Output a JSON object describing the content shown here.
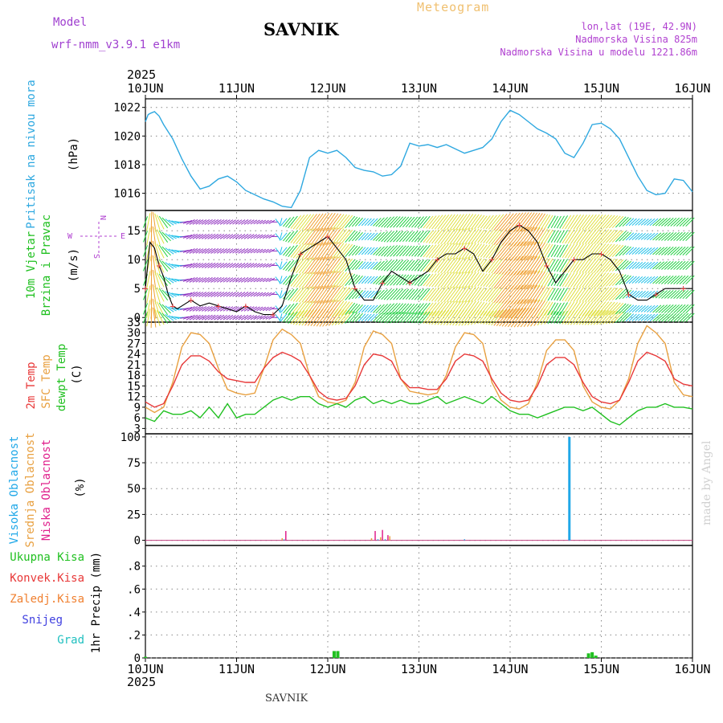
{
  "header": {
    "model_label": "Model",
    "model_name": "wrf-nmm_v3.9.1 e1km",
    "station": "SAVNIK",
    "meteogram_label": "Meteogram",
    "location_lonlat": "lon,lat (19E, 42.9N)",
    "altitude": "Nadmorska Visina 825m",
    "model_altitude": "Nadmorska Visina u modelu 1221.86m",
    "year": "2025"
  },
  "footer": {
    "station": "SAVNIK",
    "credit": "made by Angel"
  },
  "colors": {
    "pressure": "#2ea8e0",
    "temp2m": "#e83838",
    "sfc_temp": "#e8a040",
    "dewpt": "#20c020",
    "high_cloud": "#20a8e8",
    "mid_cloud": "#e8a040",
    "low_cloud": "#e0208c",
    "total_precip": "#20c020",
    "conv_precip": "#e83838",
    "grid_precip": "#f08030",
    "snow": "#4040e0",
    "graupel": "#20c0c0"
  },
  "chart_data": [
    {
      "type": "line",
      "name": "pressure",
      "ylabel_lines": [
        "Pritisak na nivou mora",
        "(hPa)"
      ],
      "x_days": [
        "10JUN",
        "11JUN",
        "12JUN",
        "13JUN",
        "14JUN",
        "15JUN",
        "16JUN"
      ],
      "ylim": [
        1014.8,
        1022.6
      ],
      "yticks": [
        1016,
        1018,
        1020,
        1022
      ],
      "grid": true,
      "series": [
        {
          "x": [
            0,
            0.03,
            0.06,
            0.1,
            0.15,
            0.2,
            0.3,
            0.4,
            0.5,
            0.6,
            0.7,
            0.8,
            0.9,
            1.0,
            1.1,
            1.2,
            1.3,
            1.4,
            1.5,
            1.6,
            1.7,
            1.8,
            1.9,
            2.0,
            2.1,
            2.2,
            2.3,
            2.4,
            2.5,
            2.6,
            2.7,
            2.8,
            2.9,
            3.0,
            3.1,
            3.2,
            3.3,
            3.4,
            3.5,
            3.6,
            3.7,
            3.8,
            3.9,
            4.0,
            4.1,
            4.2,
            4.3,
            4.4,
            4.5,
            4.6,
            4.7,
            4.8,
            4.9,
            5.0,
            5.1,
            5.2,
            5.3,
            5.4,
            5.5,
            5.6,
            5.7,
            5.8,
            5.9,
            6.0
          ],
          "values": [
            1021.0,
            1021.5,
            1021.6,
            1021.7,
            1021.4,
            1020.8,
            1019.8,
            1018.4,
            1017.2,
            1016.3,
            1016.5,
            1017.0,
            1017.2,
            1016.8,
            1016.2,
            1015.9,
            1015.6,
            1015.4,
            1015.1,
            1015.0,
            1016.2,
            1018.5,
            1019.0,
            1018.8,
            1019.0,
            1018.5,
            1017.8,
            1017.6,
            1017.5,
            1017.2,
            1017.3,
            1017.9,
            1019.5,
            1019.3,
            1019.4,
            1019.2,
            1019.4,
            1019.1,
            1018.8,
            1019.0,
            1019.2,
            1019.8,
            1021.0,
            1021.8,
            1021.5,
            1021.0,
            1020.5,
            1020.2,
            1019.8,
            1018.8,
            1018.5,
            1019.5,
            1020.8,
            1020.9,
            1020.5,
            1019.8,
            1018.5,
            1017.2,
            1016.2,
            1015.9,
            1016.0,
            1017.0,
            1016.9,
            1016.1
          ]
        }
      ]
    },
    {
      "type": "line",
      "name": "wind",
      "ylabel_lines": [
        "10m Vjetar",
        "Brzina i Pravac",
        "(m/s)"
      ],
      "compass_labels": [
        "N",
        "W",
        "E",
        "S"
      ],
      "x_days": [
        "10JUN",
        "11JUN",
        "12JUN",
        "13JUN",
        "14JUN",
        "15JUN",
        "16JUN"
      ],
      "ylim": [
        -0.8,
        18.5
      ],
      "yticks": [
        0,
        5,
        10,
        15
      ],
      "grid": true,
      "series": [
        {
          "name": "speed",
          "x": [
            0,
            0.05,
            0.1,
            0.15,
            0.2,
            0.25,
            0.3,
            0.35,
            0.4,
            0.5,
            0.6,
            0.7,
            0.8,
            0.9,
            1.0,
            1.1,
            1.2,
            1.3,
            1.4,
            1.5,
            1.6,
            1.7,
            1.8,
            1.9,
            2.0,
            2.1,
            2.2,
            2.3,
            2.4,
            2.5,
            2.6,
            2.7,
            2.8,
            2.9,
            3.0,
            3.1,
            3.2,
            3.3,
            3.4,
            3.5,
            3.6,
            3.7,
            3.8,
            3.9,
            4.0,
            4.1,
            4.2,
            4.3,
            4.4,
            4.5,
            4.6,
            4.7,
            4.8,
            4.9,
            5.0,
            5.1,
            5.2,
            5.3,
            5.4,
            5.5,
            5.6,
            5.7,
            5.8,
            5.9,
            6.0
          ],
          "values": [
            5,
            13,
            12,
            9,
            7,
            4,
            2,
            1.5,
            2,
            3,
            2,
            2.5,
            2,
            1.5,
            1,
            2,
            1,
            0.5,
            0.5,
            2,
            7,
            11,
            12,
            13,
            14,
            12,
            10,
            5,
            3,
            3,
            6,
            8,
            7,
            6,
            7,
            8,
            10,
            11,
            11,
            12,
            11,
            8,
            10,
            13,
            15,
            16,
            15,
            13,
            9,
            6,
            8,
            10,
            10,
            11,
            11,
            10,
            8,
            4,
            3,
            3,
            4,
            5,
            5,
            5,
            5
          ]
        },
        {
          "name": "direction_deg",
          "x": [
            0,
            0.5,
            1.0,
            1.4,
            1.5,
            2.0,
            2.5,
            3.0,
            3.5,
            4.0,
            4.5,
            5.0,
            5.5,
            6.0
          ],
          "values": [
            200,
            60,
            55,
            60,
            220,
            215,
            225,
            220,
            215,
            220,
            210,
            220,
            230,
            225
          ]
        }
      ]
    },
    {
      "type": "line",
      "name": "temperature",
      "legend": [
        "2m Temp",
        "SFC Temp",
        "dewpt Temp"
      ],
      "ylabel_lines": [
        "(C)"
      ],
      "x_days": [
        "10JUN",
        "11JUN",
        "12JUN",
        "13JUN",
        "14JUN",
        "15JUN",
        "16JUN"
      ],
      "ylim": [
        1.5,
        33
      ],
      "yticks": [
        3,
        6,
        9,
        12,
        15,
        18,
        21,
        24,
        27,
        30,
        33
      ],
      "grid": true,
      "series": [
        {
          "name": "2m Temp",
          "x": [
            0,
            0.1,
            0.2,
            0.3,
            0.4,
            0.5,
            0.6,
            0.7,
            0.8,
            0.9,
            1.0,
            1.1,
            1.2,
            1.3,
            1.4,
            1.5,
            1.6,
            1.7,
            1.8,
            1.9,
            2.0,
            2.1,
            2.2,
            2.3,
            2.4,
            2.5,
            2.6,
            2.7,
            2.8,
            2.9,
            3.0,
            3.1,
            3.2,
            3.3,
            3.4,
            3.5,
            3.6,
            3.7,
            3.8,
            3.9,
            4.0,
            4.1,
            4.2,
            4.3,
            4.4,
            4.5,
            4.6,
            4.7,
            4.8,
            4.9,
            5.0,
            5.1,
            5.2,
            5.3,
            5.4,
            5.5,
            5.6,
            5.7,
            5.8,
            5.9,
            6.0
          ],
          "values": [
            10.5,
            9,
            10,
            15,
            21,
            23.5,
            23.5,
            22,
            19,
            17,
            16.5,
            16,
            16,
            20,
            23,
            24.5,
            23.5,
            22,
            18,
            13.5,
            11.5,
            11,
            11.5,
            15,
            21,
            24,
            23.5,
            22,
            17,
            14.5,
            14.5,
            14,
            14,
            17,
            22,
            24,
            23.5,
            22,
            17,
            13,
            11,
            10.5,
            11,
            15,
            21,
            23,
            23,
            21,
            16,
            12,
            10.5,
            10,
            11,
            16,
            22,
            24.5,
            23.5,
            22,
            17,
            15.5,
            15
          ]
        },
        {
          "name": "SFC Temp",
          "x": [
            0,
            0.1,
            0.2,
            0.3,
            0.4,
            0.5,
            0.6,
            0.7,
            0.8,
            0.9,
            1.0,
            1.1,
            1.2,
            1.3,
            1.4,
            1.5,
            1.6,
            1.7,
            1.8,
            1.9,
            2.0,
            2.1,
            2.2,
            2.3,
            2.4,
            2.5,
            2.6,
            2.7,
            2.8,
            2.9,
            3.0,
            3.1,
            3.2,
            3.3,
            3.4,
            3.5,
            3.6,
            3.7,
            3.8,
            3.9,
            4.0,
            4.1,
            4.2,
            4.3,
            4.4,
            4.5,
            4.6,
            4.7,
            4.8,
            4.9,
            5.0,
            5.1,
            5.2,
            5.3,
            5.4,
            5.5,
            5.6,
            5.7,
            5.8,
            5.9,
            6.0
          ],
          "values": [
            9,
            7.5,
            9,
            16,
            26,
            30,
            29.5,
            27,
            20,
            14,
            13,
            12.5,
            13,
            20,
            28,
            31,
            29.5,
            27,
            18,
            12,
            10.5,
            10,
            11,
            16,
            26,
            30.5,
            29.5,
            27,
            17,
            13.5,
            13,
            12.5,
            13,
            18,
            26,
            30,
            29.5,
            27,
            16,
            11,
            9,
            8.5,
            10,
            16,
            25,
            28,
            28,
            25,
            15,
            10.5,
            9,
            8.5,
            11,
            17,
            27,
            32,
            30,
            27,
            16,
            12.5,
            12
          ]
        },
        {
          "name": "dewpt Temp",
          "x": [
            0,
            0.1,
            0.2,
            0.3,
            0.4,
            0.5,
            0.6,
            0.7,
            0.8,
            0.9,
            1.0,
            1.1,
            1.2,
            1.3,
            1.4,
            1.5,
            1.6,
            1.7,
            1.8,
            1.9,
            2.0,
            2.1,
            2.2,
            2.3,
            2.4,
            2.5,
            2.6,
            2.7,
            2.8,
            2.9,
            3.0,
            3.1,
            3.2,
            3.3,
            3.4,
            3.5,
            3.6,
            3.7,
            3.8,
            3.9,
            4.0,
            4.1,
            4.2,
            4.3,
            4.4,
            4.5,
            4.6,
            4.7,
            4.8,
            4.9,
            5.0,
            5.1,
            5.2,
            5.3,
            5.4,
            5.5,
            5.6,
            5.7,
            5.8,
            5.9,
            6.0
          ],
          "values": [
            6,
            5,
            8,
            7,
            7,
            8,
            6,
            9,
            6,
            10,
            6,
            7,
            7,
            9,
            11,
            12,
            11,
            12,
            12,
            10,
            9,
            10,
            9,
            11,
            12,
            10,
            11,
            10,
            11,
            10,
            10,
            11,
            12,
            10,
            11,
            12,
            11,
            10,
            12,
            10,
            8,
            7,
            7,
            6,
            7,
            8,
            9,
            9,
            8,
            9,
            7,
            5,
            4,
            6,
            8,
            9,
            9,
            10,
            9,
            9,
            8.5
          ]
        }
      ]
    },
    {
      "type": "bar",
      "name": "cloud_cover",
      "legend": [
        "Visoka Oblacnost",
        "Srednja Oblacnost",
        "Niska Oblacnost"
      ],
      "ylabel_lines": [
        "(%)"
      ],
      "x_days": [
        "10JUN",
        "11JUN",
        "12JUN",
        "13JUN",
        "14JUN",
        "15JUN",
        "16JUN"
      ],
      "ylim": [
        -5,
        103
      ],
      "yticks": [
        0,
        25,
        50,
        75,
        100
      ],
      "grid": true,
      "series": [
        {
          "name": "Visoka Oblacnost",
          "x": [
            1.52,
            2.55,
            2.63,
            3.5,
            4.65
          ],
          "values": [
            1,
            1,
            1,
            1,
            100
          ]
        },
        {
          "name": "Srednja Oblacnost",
          "x": [
            1.5,
            2.48,
            2.58,
            2.68
          ],
          "values": [
            2,
            2,
            3,
            4
          ]
        },
        {
          "name": "Niska Oblacnost",
          "x": [
            1.54,
            2.52,
            2.6,
            2.66
          ],
          "values": [
            9,
            9,
            10,
            5
          ]
        }
      ]
    },
    {
      "type": "bar",
      "name": "precipitation",
      "legend": [
        "Ukupna Kisa",
        "Konvek.Kisa",
        "Zaledj.Kisa",
        "Snijeg",
        "Grad"
      ],
      "ylabel_lines": [
        "1hr Precip (mm)"
      ],
      "x_days": [
        "10JUN",
        "11JUN",
        "12JUN",
        "13JUN",
        "14JUN",
        "15JUN",
        "16JUN"
      ],
      "ylim": [
        0,
        0.98
      ],
      "yticks": [
        0,
        0.2,
        0.4,
        0.6,
        0.8
      ],
      "grid": true,
      "series": [
        {
          "name": "Ukupna Kisa",
          "x": [
            0.0,
            2.07,
            2.11,
            4.86,
            4.9,
            4.94
          ],
          "values": [
            0.01,
            0.06,
            0.06,
            0.04,
            0.05,
            0.02
          ]
        }
      ]
    }
  ]
}
